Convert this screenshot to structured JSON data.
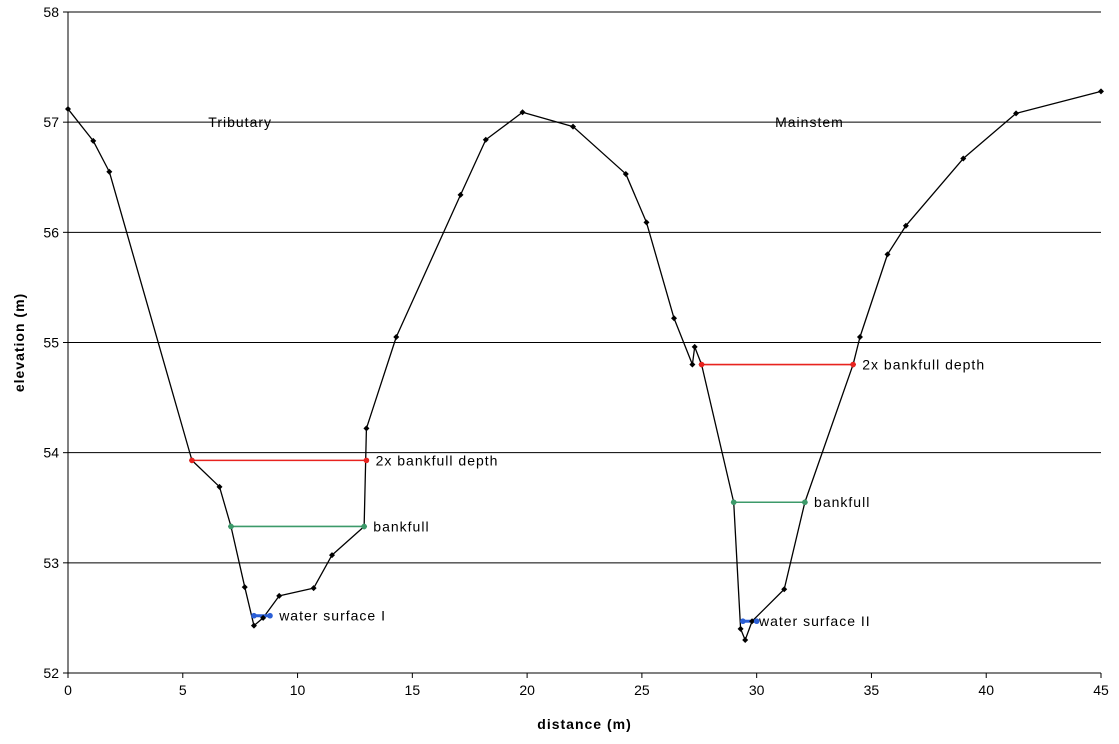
{
  "chart_data": {
    "type": "line",
    "xlabel": "distance (m)",
    "ylabel": "elevation (m)",
    "xlim": [
      0,
      45
    ],
    "ylim": [
      52,
      58
    ],
    "x_ticks": [
      0,
      5,
      10,
      15,
      20,
      25,
      30,
      35,
      40,
      45
    ],
    "y_ticks": [
      52,
      53,
      54,
      55,
      56,
      57,
      58
    ],
    "grid": "horizontal",
    "legend": "none",
    "series": [
      {
        "color": "#000000",
        "points": [
          [
            0,
            57.12
          ],
          [
            1.1,
            56.83
          ],
          [
            1.8,
            56.55
          ],
          [
            5.4,
            53.93
          ],
          [
            6.6,
            53.69
          ],
          [
            7.1,
            53.33
          ],
          [
            7.7,
            52.78
          ],
          [
            8.1,
            52.43
          ],
          [
            8.5,
            52.5
          ],
          [
            9.2,
            52.7
          ],
          [
            10.7,
            52.77
          ],
          [
            11.5,
            53.07
          ],
          [
            12.9,
            53.33
          ],
          [
            13.0,
            54.22
          ],
          [
            14.3,
            55.05
          ],
          [
            17.1,
            56.34
          ],
          [
            18.2,
            56.84
          ],
          [
            19.8,
            57.09
          ],
          [
            22.0,
            56.96
          ],
          [
            24.3,
            56.53
          ],
          [
            25.2,
            56.09
          ],
          [
            26.4,
            55.22
          ],
          [
            27.2,
            54.8
          ],
          [
            27.3,
            54.96
          ],
          [
            27.6,
            54.8
          ],
          [
            29.0,
            53.55
          ],
          [
            29.3,
            52.4
          ],
          [
            29.5,
            52.3
          ],
          [
            29.8,
            52.47
          ],
          [
            31.2,
            52.76
          ],
          [
            32.1,
            53.55
          ],
          [
            34.2,
            54.8
          ],
          [
            34.5,
            55.05
          ],
          [
            35.7,
            55.8
          ],
          [
            36.5,
            56.06
          ],
          [
            39.0,
            56.67
          ],
          [
            41.3,
            57.08
          ],
          [
            45.0,
            57.28
          ]
        ]
      },
      {
        "color": "#e8231f",
        "points": [
          [
            5.4,
            53.93
          ],
          [
            13.0,
            53.93
          ]
        ]
      },
      {
        "color": "#3c9a6a",
        "points": [
          [
            7.1,
            53.33
          ],
          [
            12.9,
            53.33
          ]
        ]
      },
      {
        "color": "#2b5fd6",
        "points": [
          [
            8.1,
            52.52
          ],
          [
            8.8,
            52.52
          ]
        ]
      },
      {
        "color": "#e8231f",
        "points": [
          [
            27.6,
            54.8
          ],
          [
            34.2,
            54.8
          ]
        ]
      },
      {
        "color": "#3c9a6a",
        "points": [
          [
            29.0,
            53.55
          ],
          [
            32.1,
            53.55
          ]
        ]
      },
      {
        "color": "#2b5fd6",
        "points": [
          [
            29.4,
            52.47
          ],
          [
            30.0,
            52.47
          ]
        ]
      }
    ],
    "annotations": [
      {
        "text": "Tributary",
        "x": 7.5,
        "y": 57.0,
        "anchor": "middle"
      },
      {
        "text": "Mainstem",
        "x": 32.3,
        "y": 57.0,
        "anchor": "middle"
      },
      {
        "text": "2x bankfull depth",
        "x": 13.4,
        "y": 53.93,
        "anchor": "start"
      },
      {
        "text": "bankfull",
        "x": 13.3,
        "y": 53.33,
        "anchor": "start"
      },
      {
        "text": "water surface I",
        "x": 9.2,
        "y": 52.52,
        "anchor": "start"
      },
      {
        "text": "2x bankfull depth",
        "x": 34.6,
        "y": 54.8,
        "anchor": "start"
      },
      {
        "text": "bankfull",
        "x": 32.5,
        "y": 53.55,
        "anchor": "start"
      },
      {
        "text": "water surface II",
        "x": 30.1,
        "y": 52.47,
        "anchor": "start"
      }
    ]
  }
}
